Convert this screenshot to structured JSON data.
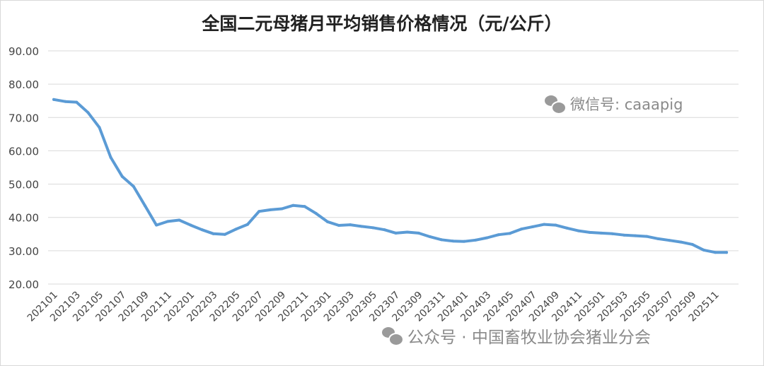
{
  "chart_data": {
    "type": "line",
    "title": "全国二元母猪月平均销售价格情况（元/公斤）",
    "xlabel": "",
    "ylabel": "",
    "ylim": [
      20,
      90
    ],
    "y_ticks": [
      "20.00",
      "30.00",
      "40.00",
      "50.00",
      "60.00",
      "70.00",
      "80.00",
      "90.00"
    ],
    "grid": true,
    "legend": "none",
    "line_color": "#5b9bd5",
    "x": [
      "202101",
      "202102",
      "202103",
      "202104",
      "202105",
      "202106",
      "202107",
      "202108",
      "202109",
      "202110",
      "202111",
      "202112",
      "202201",
      "202202",
      "202203",
      "202204",
      "202205",
      "202206",
      "202207",
      "202208",
      "202209",
      "202210",
      "202211",
      "202212",
      "202301",
      "202302",
      "202303",
      "202304",
      "202305",
      "202306",
      "202307",
      "202308",
      "202309",
      "202310",
      "202311",
      "202312",
      "202401",
      "202402",
      "202403",
      "202404",
      "202405",
      "202406",
      "202407",
      "202408",
      "202409",
      "202410",
      "202411",
      "202412",
      "202501",
      "202502",
      "202503",
      "202504",
      "202505",
      "202506",
      "202507",
      "202508",
      "202509",
      "202510",
      "202511",
      "202512"
    ],
    "x_tick_labels": [
      "202101",
      "202103",
      "202105",
      "202107",
      "202109",
      "202111",
      "202201",
      "202203",
      "202205",
      "202207",
      "202209",
      "202211",
      "202301",
      "202303",
      "202305",
      "202307",
      "202309",
      "202311",
      "202401",
      "202403",
      "202405",
      "202407",
      "202409",
      "202411",
      "202501",
      "202503",
      "202505",
      "202507",
      "202509",
      "202511"
    ],
    "series": [
      {
        "values": [
          75.4,
          74.8,
          74.6,
          71.5,
          67.0,
          58.0,
          52.3,
          49.3,
          43.5,
          37.7,
          38.8,
          39.2,
          37.7,
          36.3,
          35.1,
          34.9,
          36.5,
          37.9,
          41.8,
          42.3,
          42.6,
          43.6,
          43.3,
          41.2,
          38.7,
          37.6,
          37.8,
          37.3,
          36.9,
          36.3,
          35.3,
          35.6,
          35.3,
          34.2,
          33.3,
          32.9,
          32.8,
          33.2,
          33.9,
          34.8,
          35.2,
          36.5,
          37.2,
          37.9,
          37.7,
          36.8,
          36.0,
          35.5,
          35.3,
          35.1,
          34.7,
          34.5,
          34.3,
          33.6,
          33.1,
          32.6,
          31.9,
          30.2,
          29.5,
          29.5
        ]
      }
    ]
  },
  "watermarks": {
    "wechat_id": "微信号: caaapig",
    "public_account": "公众号 · 中国畜牧业协会猪业分会"
  }
}
